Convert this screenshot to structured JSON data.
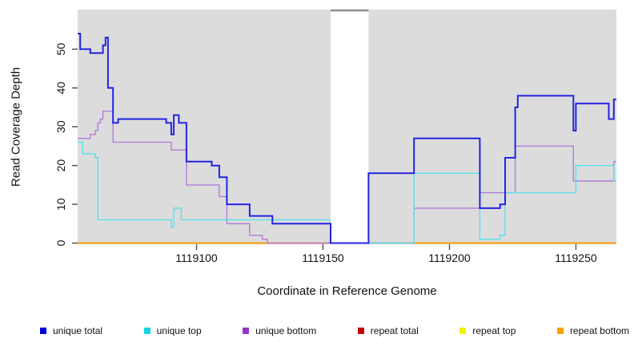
{
  "chart_data": {
    "type": "line",
    "subtype": "step-coverage",
    "title": "",
    "xlabel": "Coordinate in Reference Genome",
    "ylabel": "Read Coverage Depth",
    "xlim": [
      1119053,
      1119266
    ],
    "ylim": [
      0,
      60
    ],
    "x_ticks": [
      1119100,
      1119150,
      1119200,
      1119250
    ],
    "y_ticks": [
      0,
      10,
      20,
      30,
      40,
      50
    ],
    "grid": false,
    "plot_bg_color": "#dcdcdc",
    "tick_color": "#4d4d4d",
    "text_color": "#111111",
    "masked_region": {
      "start": 1119153,
      "end": 1119168,
      "fill": "#ffffff",
      "top_border_color": "#8f8f8f"
    },
    "series": [
      {
        "name": "repeat total",
        "color": "#cc1111",
        "width": 1.5,
        "above_mask": false,
        "steps": [
          [
            1119053,
            0
          ]
        ]
      },
      {
        "name": "repeat top",
        "color": "#f2f200",
        "width": 1.3,
        "above_mask": false,
        "steps": [
          [
            1119053,
            0
          ]
        ]
      },
      {
        "name": "repeat bottom",
        "color": "#ff9e00",
        "width": 1.8,
        "above_mask": false,
        "steps": [
          [
            1119053,
            0
          ]
        ]
      },
      {
        "name": "unique bottom",
        "color": "#b07cd8",
        "width": 1.4,
        "above_mask": false,
        "steps": [
          [
            1119053,
            27
          ],
          [
            1119058,
            28
          ],
          [
            1119060,
            29
          ],
          [
            1119061,
            31
          ],
          [
            1119062,
            32
          ],
          [
            1119063,
            34
          ],
          [
            1119067,
            26
          ],
          [
            1119090,
            24
          ],
          [
            1119096,
            15
          ],
          [
            1119109,
            12
          ],
          [
            1119112,
            5
          ],
          [
            1119121,
            2
          ],
          [
            1119126,
            1
          ],
          [
            1119128,
            0
          ],
          [
            1119186,
            9
          ],
          [
            1119212,
            13
          ],
          [
            1119226,
            25
          ],
          [
            1119249,
            16
          ],
          [
            1119265,
            21
          ]
        ]
      },
      {
        "name": "unique top",
        "color": "#55e2ec",
        "width": 1.4,
        "above_mask": false,
        "steps": [
          [
            1119053,
            26
          ],
          [
            1119055,
            23
          ],
          [
            1119060,
            22
          ],
          [
            1119061,
            6
          ],
          [
            1119090,
            4
          ],
          [
            1119091,
            9
          ],
          [
            1119094,
            6
          ],
          [
            1119153,
            0
          ],
          [
            1119186,
            18
          ],
          [
            1119212,
            1
          ],
          [
            1119220,
            2
          ],
          [
            1119222,
            13
          ],
          [
            1119250,
            20
          ],
          [
            1119265,
            16
          ]
        ]
      },
      {
        "name": "unique total",
        "color": "#2424e0",
        "width": 2.0,
        "above_mask": true,
        "steps": [
          [
            1119053,
            54
          ],
          [
            1119054,
            50
          ],
          [
            1119058,
            49
          ],
          [
            1119063,
            51
          ],
          [
            1119064,
            53
          ],
          [
            1119065,
            40
          ],
          [
            1119067,
            31
          ],
          [
            1119069,
            32
          ],
          [
            1119088,
            31
          ],
          [
            1119090,
            28
          ],
          [
            1119091,
            33
          ],
          [
            1119093,
            31
          ],
          [
            1119096,
            21
          ],
          [
            1119106,
            20
          ],
          [
            1119109,
            17
          ],
          [
            1119112,
            10
          ],
          [
            1119121,
            7
          ],
          [
            1119130,
            5
          ],
          [
            1119153,
            0
          ],
          [
            1119168,
            18
          ],
          [
            1119186,
            27
          ],
          [
            1119212,
            9
          ],
          [
            1119220,
            10
          ],
          [
            1119222,
            22
          ],
          [
            1119226,
            35
          ],
          [
            1119227,
            38
          ],
          [
            1119249,
            29
          ],
          [
            1119250,
            36
          ],
          [
            1119263,
            32
          ],
          [
            1119265,
            37
          ]
        ]
      }
    ],
    "legend": [
      {
        "label": "unique total",
        "color": "#0000e0"
      },
      {
        "label": "unique top",
        "color": "#11d6e2"
      },
      {
        "label": "unique bottom",
        "color": "#9632c8"
      },
      {
        "label": "repeat total",
        "color": "#c00000"
      },
      {
        "label": "repeat top",
        "color": "#f2f200"
      },
      {
        "label": "repeat bottom",
        "color": "#ff9e00"
      }
    ],
    "legend_position": "bottom"
  }
}
